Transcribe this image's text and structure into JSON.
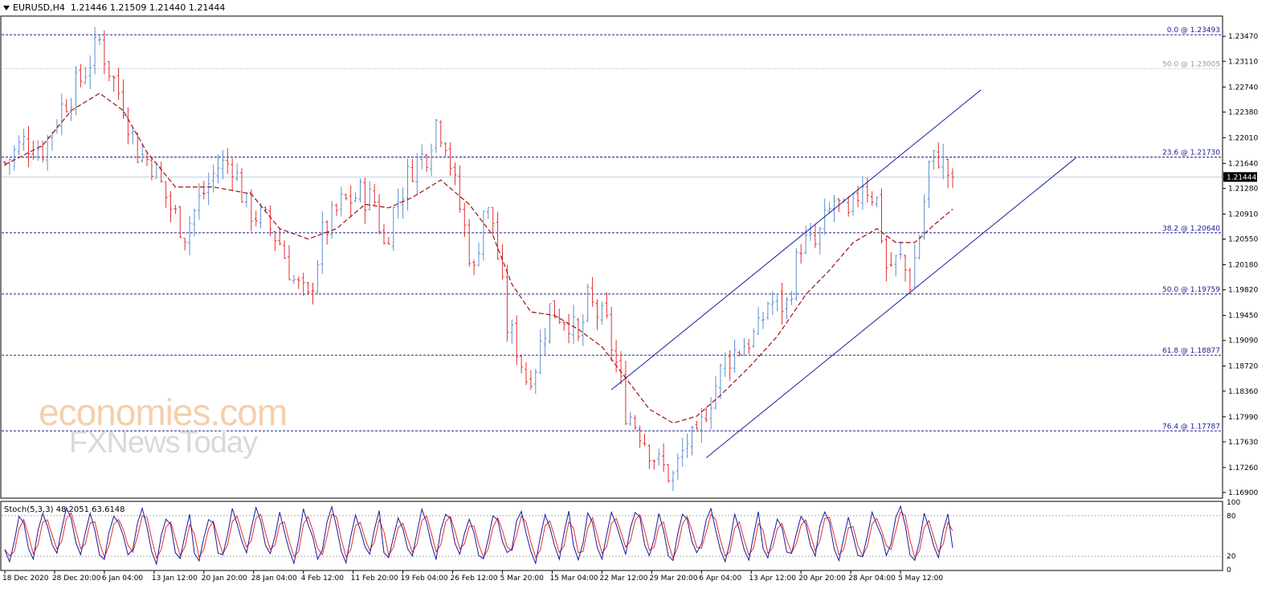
{
  "header": {
    "symbol": "EURUSD,H4",
    "ohlc": "1.21446 1.21509 1.21440 1.21444"
  },
  "watermark": {
    "line1": "economies.com",
    "line2": "FXNewsToday"
  },
  "colors": {
    "bull": "#5b8fd0",
    "bear": "#e53030",
    "ma": "#a01010",
    "fib": "#202090",
    "channel": "#1c1ca0",
    "stoch_main": "#1a1a9a",
    "stoch_signal": "#e53030"
  },
  "chart_data": [
    {
      "type": "line",
      "name": "EURUSD H4 price",
      "price_axis": [
        "1.23470",
        "1.23110",
        "1.22740",
        "1.22380",
        "1.22010",
        "1.21640",
        "1.21280",
        "1.20910",
        "1.20550",
        "1.20180",
        "1.19820",
        "1.19450",
        "1.19090",
        "1.18720",
        "1.18360",
        "1.17990",
        "1.17630",
        "1.17260",
        "1.16900"
      ],
      "ylim": [
        1.1683,
        1.2375
      ],
      "current_price": "1.21444",
      "x_labels": [
        "18 Dec 2020",
        "28 Dec 20:00",
        "6 Jan 04:00",
        "13 Jan 12:00",
        "20 Jan 20:00",
        "28 Jan 04:00",
        "4 Feb 12:00",
        "11 Feb 20:00",
        "19 Feb 04:00",
        "26 Feb 12:00",
        "5 Mar 20:00",
        "15 Mar 04:00",
        "22 Mar 12:00",
        "29 Mar 20:00",
        "6 Apr 04:00",
        "13 Apr 12:00",
        "20 Apr 20:00",
        "28 Apr 04:00",
        "5 May 12:00"
      ],
      "x_index_range": [
        0,
        200
      ],
      "price_path": [
        [
          0,
          1.2165
        ],
        [
          4,
          1.2195
        ],
        [
          8,
          1.2185
        ],
        [
          12,
          1.2245
        ],
        [
          16,
          1.2285
        ],
        [
          20,
          1.234
        ],
        [
          22,
          1.23
        ],
        [
          25,
          1.225
        ],
        [
          28,
          1.218
        ],
        [
          31,
          1.2165
        ],
        [
          35,
          1.21
        ],
        [
          38,
          1.2065
        ],
        [
          41,
          1.211
        ],
        [
          45,
          1.216
        ],
        [
          48,
          1.2165
        ],
        [
          51,
          1.21
        ],
        [
          55,
          1.208
        ],
        [
          58,
          1.205
        ],
        [
          61,
          1.1995
        ],
        [
          64,
          1.1965
        ],
        [
          67,
          1.206
        ],
        [
          71,
          1.2105
        ],
        [
          75,
          1.212
        ],
        [
          78,
          1.211
        ],
        [
          80,
          1.2045
        ],
        [
          82,
          1.2095
        ],
        [
          86,
          1.216
        ],
        [
          89,
          1.218
        ],
        [
          91,
          1.2225
        ],
        [
          93,
          1.22
        ],
        [
          95,
          1.213
        ],
        [
          97,
          1.207
        ],
        [
          99,
          1.2005
        ],
        [
          101,
          1.21
        ],
        [
          103,
          1.208
        ],
        [
          106,
          1.193
        ],
        [
          108,
          1.19
        ],
        [
          110,
          1.1855
        ],
        [
          112,
          1.1875
        ],
        [
          115,
          1.1955
        ],
        [
          119,
          1.194
        ],
        [
          121,
          1.1905
        ],
        [
          123,
          1.1965
        ],
        [
          127,
          1.193
        ],
        [
          129,
          1.1875
        ],
        [
          131,
          1.181
        ],
        [
          134,
          1.178
        ],
        [
          138,
          1.173
        ],
        [
          141,
          1.1712
        ],
        [
          144,
          1.1765
        ],
        [
          146,
          1.176
        ],
        [
          148,
          1.1812
        ],
        [
          150,
          1.1845
        ],
        [
          152,
          1.188
        ],
        [
          156,
          1.1905
        ],
        [
          159,
          1.192
        ],
        [
          161,
          1.1965
        ],
        [
          165,
          1.196
        ],
        [
          168,
          1.205
        ],
        [
          171,
          1.2045
        ],
        [
          175,
          1.211
        ],
        [
          178,
          1.208
        ],
        [
          181,
          1.214
        ],
        [
          184,
          1.211
        ],
        [
          186,
          1.2015
        ],
        [
          189,
          1.2025
        ],
        [
          191,
          1.1995
        ],
        [
          193,
          1.206
        ],
        [
          195,
          1.216
        ],
        [
          197,
          1.2175
        ],
        [
          199,
          1.215
        ],
        [
          200,
          1.2144
        ]
      ],
      "moving_average_path": [
        [
          0,
          1.2162
        ],
        [
          8,
          1.219
        ],
        [
          14,
          1.224
        ],
        [
          20,
          1.2265
        ],
        [
          25,
          1.224
        ],
        [
          30,
          1.218
        ],
        [
          36,
          1.213
        ],
        [
          44,
          1.213
        ],
        [
          52,
          1.212
        ],
        [
          58,
          1.207
        ],
        [
          64,
          1.2055
        ],
        [
          70,
          1.207
        ],
        [
          76,
          1.2105
        ],
        [
          81,
          1.21
        ],
        [
          86,
          1.2115
        ],
        [
          92,
          1.214
        ],
        [
          98,
          1.2105
        ],
        [
          103,
          1.206
        ],
        [
          107,
          1.199
        ],
        [
          111,
          1.195
        ],
        [
          116,
          1.1945
        ],
        [
          121,
          1.1925
        ],
        [
          126,
          1.19
        ],
        [
          131,
          1.1855
        ],
        [
          136,
          1.181
        ],
        [
          141,
          1.179
        ],
        [
          146,
          1.18
        ],
        [
          151,
          1.183
        ],
        [
          157,
          1.187
        ],
        [
          163,
          1.1915
        ],
        [
          169,
          1.1975
        ],
        [
          174,
          1.201
        ],
        [
          179,
          1.205
        ],
        [
          184,
          1.207
        ],
        [
          188,
          1.205
        ],
        [
          192,
          1.205
        ],
        [
          196,
          1.2075
        ],
        [
          200,
          1.2098
        ]
      ],
      "fibonacci_levels": [
        {
          "label": "0.0 @ 1.23493",
          "price": 1.23493,
          "style": "dashed"
        },
        {
          "label": "50.0 @ 1.23005",
          "price": 1.23005,
          "style": "dotted"
        },
        {
          "label": "23.6 @ 1.21730",
          "price": 1.2173,
          "style": "dashed"
        },
        {
          "label": "38.2 @ 1.20640",
          "price": 1.2064,
          "style": "dashed"
        },
        {
          "label": "50.0 @ 1.19759",
          "price": 1.19759,
          "style": "dashed"
        },
        {
          "label": "61.8 @ 1.18877",
          "price": 1.18877,
          "style": "dashed"
        },
        {
          "label": "76.4 @ 1.17787",
          "price": 1.17787,
          "style": "dashed"
        }
      ],
      "channel": {
        "upper": [
          [
            128,
            1.1838
          ],
          [
            206,
            1.227
          ]
        ],
        "lower": [
          [
            148,
            1.174
          ],
          [
            226,
            1.2172
          ]
        ]
      }
    },
    {
      "type": "line",
      "name": "Stoch(5,3,3)",
      "label": "Stoch(5,3,3) 48.2051 63.6148",
      "axis_labels": [
        "100",
        "80",
        "20",
        "0"
      ],
      "levels": [
        80,
        20
      ],
      "ylim": [
        0,
        100
      ],
      "main_pattern": [
        30,
        15,
        45,
        80,
        65,
        30,
        20,
        55,
        85,
        70,
        40,
        20,
        60,
        88,
        75,
        35,
        18,
        50,
        80,
        55,
        25,
        15,
        50,
        85,
        70,
        45,
        20,
        35,
        75,
        90,
        60,
        25,
        12,
        45,
        78,
        62,
        30,
        20,
        55,
        82
      ]
    }
  ]
}
